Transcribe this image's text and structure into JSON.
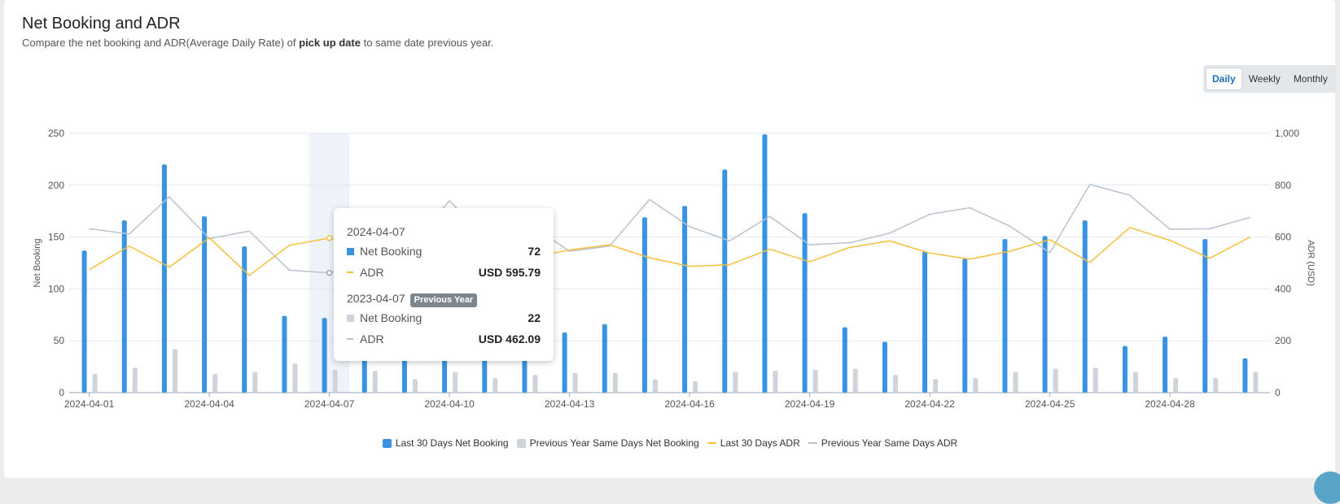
{
  "header": {
    "title": "Net Booking and ADR",
    "subtitle_pre": "Compare the net booking and ADR(Average Daily Rate) of ",
    "subtitle_bold": "pick up date",
    "subtitle_post": " to same date previous year."
  },
  "toggle": {
    "daily": "Daily",
    "weekly": "Weekly",
    "monthly": "Monthly",
    "active": "Daily"
  },
  "tooltip": {
    "date_current": "2024-04-07",
    "net_booking_label": "Net Booking",
    "net_booking_value": "72",
    "adr_label": "ADR",
    "adr_value": "USD 595.79",
    "date_previous": "2023-04-07",
    "previous_badge": "Previous Year",
    "prev_net_booking_label": "Net Booking",
    "prev_net_booking_value": "22",
    "prev_adr_label": "ADR",
    "prev_adr_value": "USD 462.09"
  },
  "colors": {
    "current_bar": "#3a93e0",
    "previous_bar": "#cfd4da",
    "current_adr": "#f6c03b",
    "previous_adr": "#b9c3cf"
  },
  "chart_data": {
    "type": "bar",
    "dates": [
      "2024-04-01",
      "2024-04-02",
      "2024-04-03",
      "2024-04-04",
      "2024-04-05",
      "2024-04-06",
      "2024-04-07",
      "2024-04-08",
      "2024-04-09",
      "2024-04-10",
      "2024-04-11",
      "2024-04-12",
      "2024-04-13",
      "2024-04-14",
      "2024-04-15",
      "2024-04-16",
      "2024-04-17",
      "2024-04-18",
      "2024-04-19",
      "2024-04-20",
      "2024-04-21",
      "2024-04-22",
      "2024-04-23",
      "2024-04-24",
      "2024-04-25",
      "2024-04-26",
      "2024-04-27",
      "2024-04-28",
      "2024-04-29",
      "2024-04-30"
    ],
    "x_tick_labels": [
      "2024-04-01",
      "2024-04-04",
      "2024-04-07",
      "2024-04-10",
      "2024-04-13",
      "2024-04-16",
      "2024-04-19",
      "2024-04-22",
      "2024-04-25",
      "2024-04-28"
    ],
    "x_tick_indices": [
      0,
      3,
      6,
      9,
      12,
      15,
      18,
      21,
      24,
      27
    ],
    "ylabel": "Net Booking",
    "ylim": [
      0,
      250
    ],
    "y_ticks": [
      "0",
      "50",
      "100",
      "150",
      "200",
      "250"
    ],
    "y2label": "ADR (USD)",
    "y2lim": [
      0,
      1000
    ],
    "y2_ticks": [
      "0",
      "200",
      "400",
      "600",
      "800",
      "1,000"
    ],
    "grid": true,
    "legend_position": "bottom-center",
    "highlight_index": 6,
    "series": [
      {
        "name": "Last 30 Days Net Booking",
        "type": "bar",
        "axis": "left",
        "values": [
          137,
          166,
          220,
          170,
          141,
          74,
          72,
          95,
          155,
          168,
          173,
          105,
          58,
          66,
          169,
          180,
          215,
          249,
          173,
          63,
          49,
          136,
          129,
          148,
          151,
          166,
          45,
          54,
          148,
          33
        ]
      },
      {
        "name": "Previous Year Same Days Net Booking",
        "type": "bar",
        "axis": "left",
        "values": [
          18,
          24,
          42,
          18,
          20,
          28,
          22,
          21,
          13,
          20,
          14,
          17,
          19,
          19,
          13,
          11,
          20,
          21,
          22,
          23,
          17,
          13,
          14,
          20,
          23,
          24,
          20,
          14,
          14,
          20
        ]
      },
      {
        "name": "Last 30 Days ADR",
        "type": "line",
        "axis": "right",
        "values": [
          474,
          565,
          484,
          597,
          452,
          568,
          596,
          560,
          530,
          545,
          530,
          520,
          550,
          570,
          520,
          487,
          493,
          553,
          505,
          560,
          585,
          538,
          515,
          545,
          590,
          502,
          637,
          587,
          518,
          600
        ]
      },
      {
        "name": "Previous Year Same Days ADR",
        "type": "line",
        "axis": "right",
        "values": [
          632,
          612,
          755,
          594,
          623,
          472,
          462,
          500,
          560,
          740,
          580,
          650,
          545,
          565,
          745,
          640,
          585,
          680,
          570,
          578,
          615,
          688,
          713,
          642,
          540,
          803,
          761,
          630,
          632,
          676
        ]
      }
    ]
  }
}
